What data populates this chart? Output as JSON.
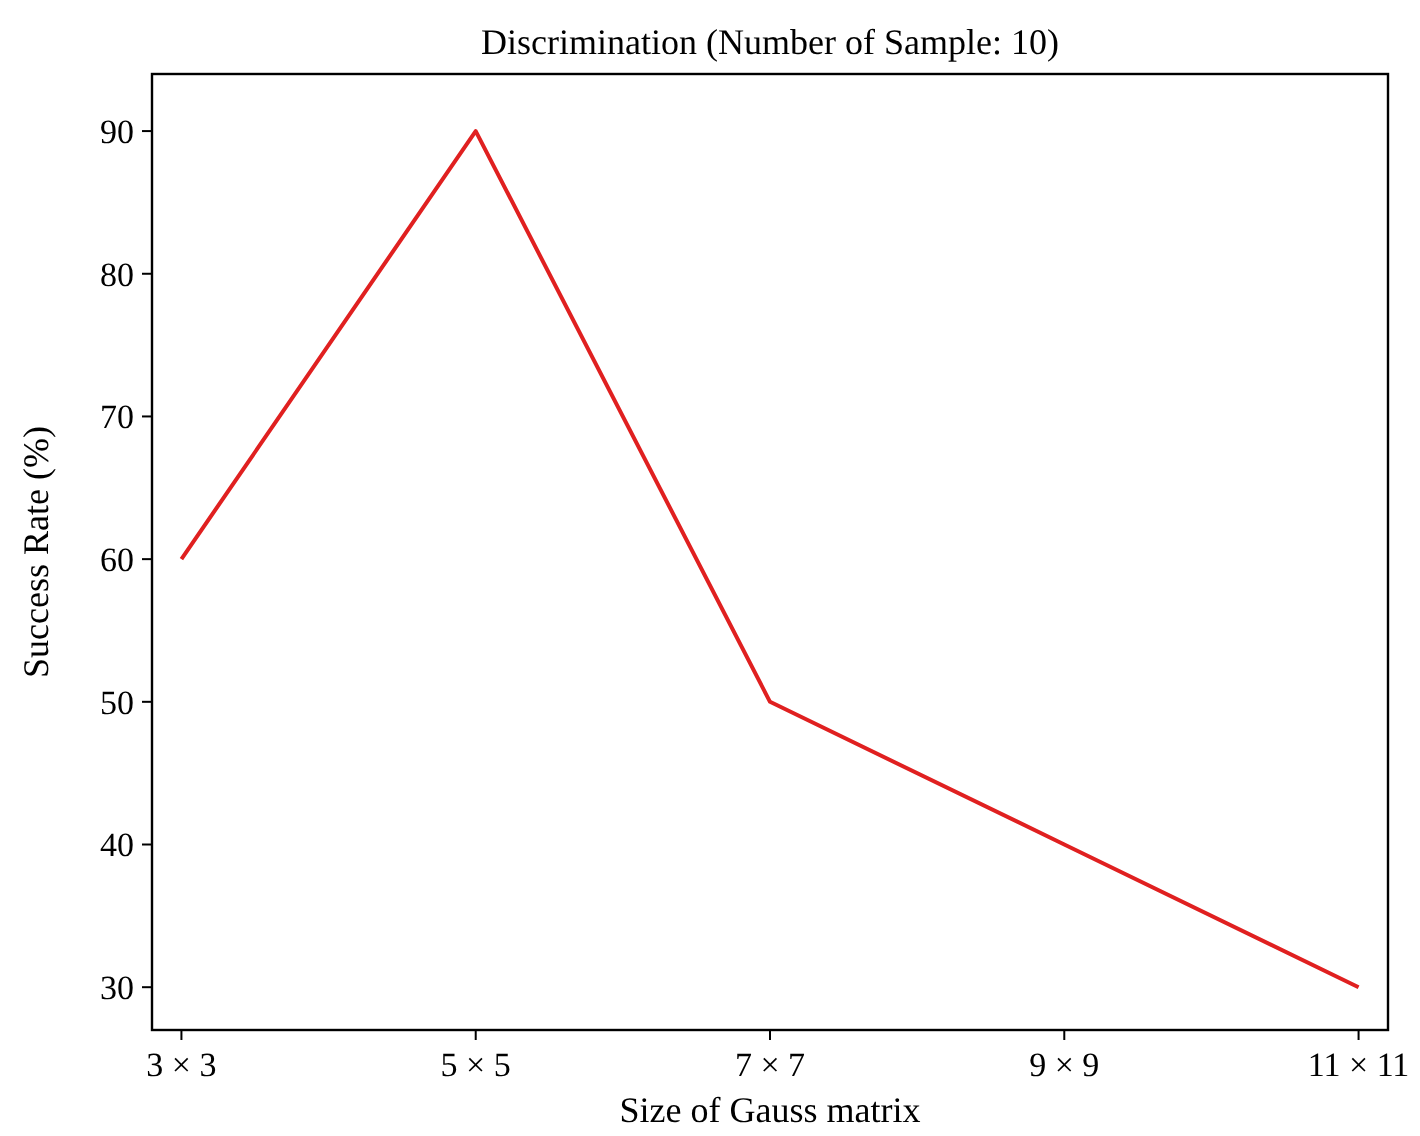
{
  "chart_data": {
    "type": "line",
    "title": "Discrimination (Number of Sample: 10)",
    "xlabel": "Size of Gauss matrix",
    "ylabel": "Success Rate (%)",
    "categories": [
      "3 × 3",
      "5 × 5",
      "7 × 7",
      "9 × 9",
      "11 × 11"
    ],
    "series": [
      {
        "color": "#e02020",
        "values": [
          60,
          90,
          50,
          40,
          30
        ]
      }
    ],
    "ylim": [
      27,
      94
    ],
    "yticks": [
      30,
      40,
      50,
      60,
      70,
      80,
      90
    ],
    "grid": false,
    "marker": "none",
    "line_style": "solid"
  }
}
